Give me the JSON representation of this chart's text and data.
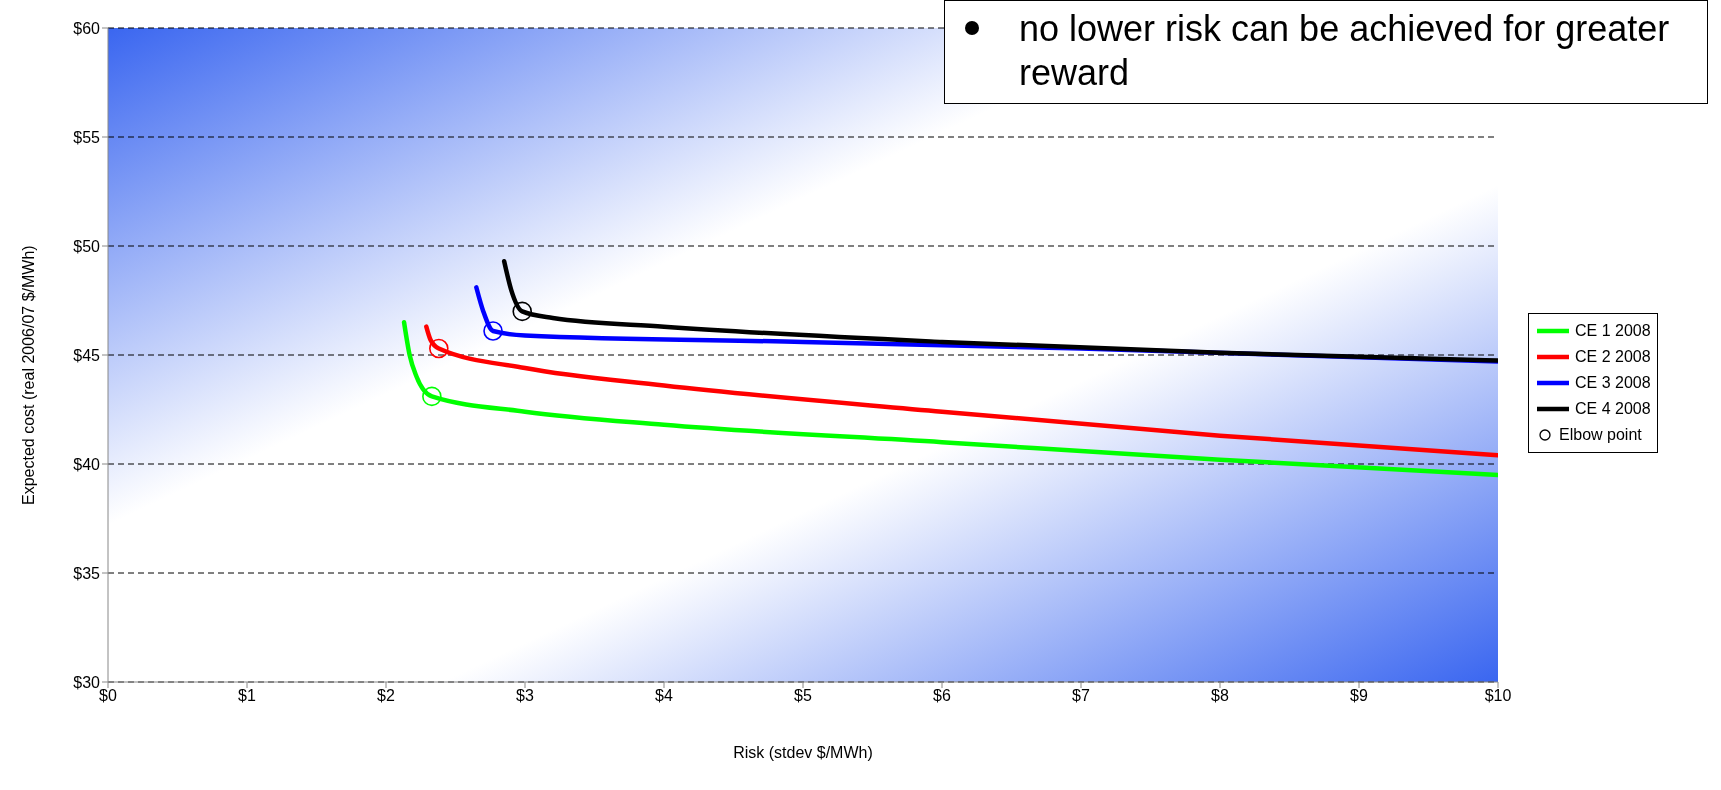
{
  "chart_data": {
    "type": "line",
    "xlabel": "Risk (stdev $/MWh)",
    "ylabel": "Expected cost (real 2006/07 $/MWh)",
    "xlim": [
      0,
      10
    ],
    "ylim": [
      30,
      60
    ],
    "xticks": [
      {
        "value": 0,
        "label": "$0"
      },
      {
        "value": 1,
        "label": "$1"
      },
      {
        "value": 2,
        "label": "$2"
      },
      {
        "value": 3,
        "label": "$3"
      },
      {
        "value": 4,
        "label": "$4"
      },
      {
        "value": 5,
        "label": "$5"
      },
      {
        "value": 6,
        "label": "$6"
      },
      {
        "value": 7,
        "label": "$7"
      },
      {
        "value": 8,
        "label": "$8"
      },
      {
        "value": 9,
        "label": "$9"
      },
      {
        "value": 10,
        "label": "$10"
      }
    ],
    "yticks": [
      {
        "value": 30,
        "label": "$30"
      },
      {
        "value": 35,
        "label": "$35"
      },
      {
        "value": 40,
        "label": "$40"
      },
      {
        "value": 45,
        "label": "$45"
      },
      {
        "value": 50,
        "label": "$50"
      },
      {
        "value": 55,
        "label": "$55"
      },
      {
        "value": 60,
        "label": "$60"
      }
    ],
    "grid": "y",
    "legend": "right",
    "marker": "none",
    "line_style": "solid",
    "annotations": [
      "no lower risk can be achieved for greater reward"
    ],
    "series": [
      {
        "name": "CE 1 2008",
        "color": "#00ff00",
        "x": [
          2.13,
          2.17,
          2.22,
          2.33,
          3,
          4,
          6,
          8,
          10
        ],
        "values": [
          46.5,
          45.0,
          44.0,
          43.1,
          42.4,
          41.8,
          41.0,
          40.2,
          39.5
        ]
      },
      {
        "name": "CE 2 2008",
        "color": "#ff0000",
        "x": [
          2.29,
          2.32,
          2.38,
          3,
          4,
          6,
          8,
          10
        ],
        "values": [
          46.3,
          45.7,
          45.3,
          44.4,
          43.6,
          42.4,
          41.3,
          40.4
        ]
      },
      {
        "name": "CE 3 2008",
        "color": "#0000ff",
        "x": [
          2.65,
          2.7,
          2.77,
          3,
          5,
          7,
          10
        ],
        "values": [
          48.1,
          47.0,
          46.1,
          45.9,
          45.6,
          45.3,
          44.7
        ]
      },
      {
        "name": "CE 4 2008",
        "color": "#000000",
        "x": [
          2.85,
          2.9,
          2.98,
          3.2,
          4,
          6,
          8,
          10
        ],
        "values": [
          49.3,
          48.0,
          47.0,
          46.7,
          46.3,
          45.6,
          45.1,
          44.75
        ]
      },
      {
        "name": "Elbow point",
        "type": "scatter",
        "marker": "circle",
        "color": "#000000",
        "colors": [
          "#00ff00",
          "#ff0000",
          "#0000ff",
          "#000000"
        ],
        "x": [
          2.33,
          2.38,
          2.77,
          2.98
        ],
        "values": [
          43.1,
          45.3,
          46.1,
          47.0
        ]
      }
    ]
  }
}
